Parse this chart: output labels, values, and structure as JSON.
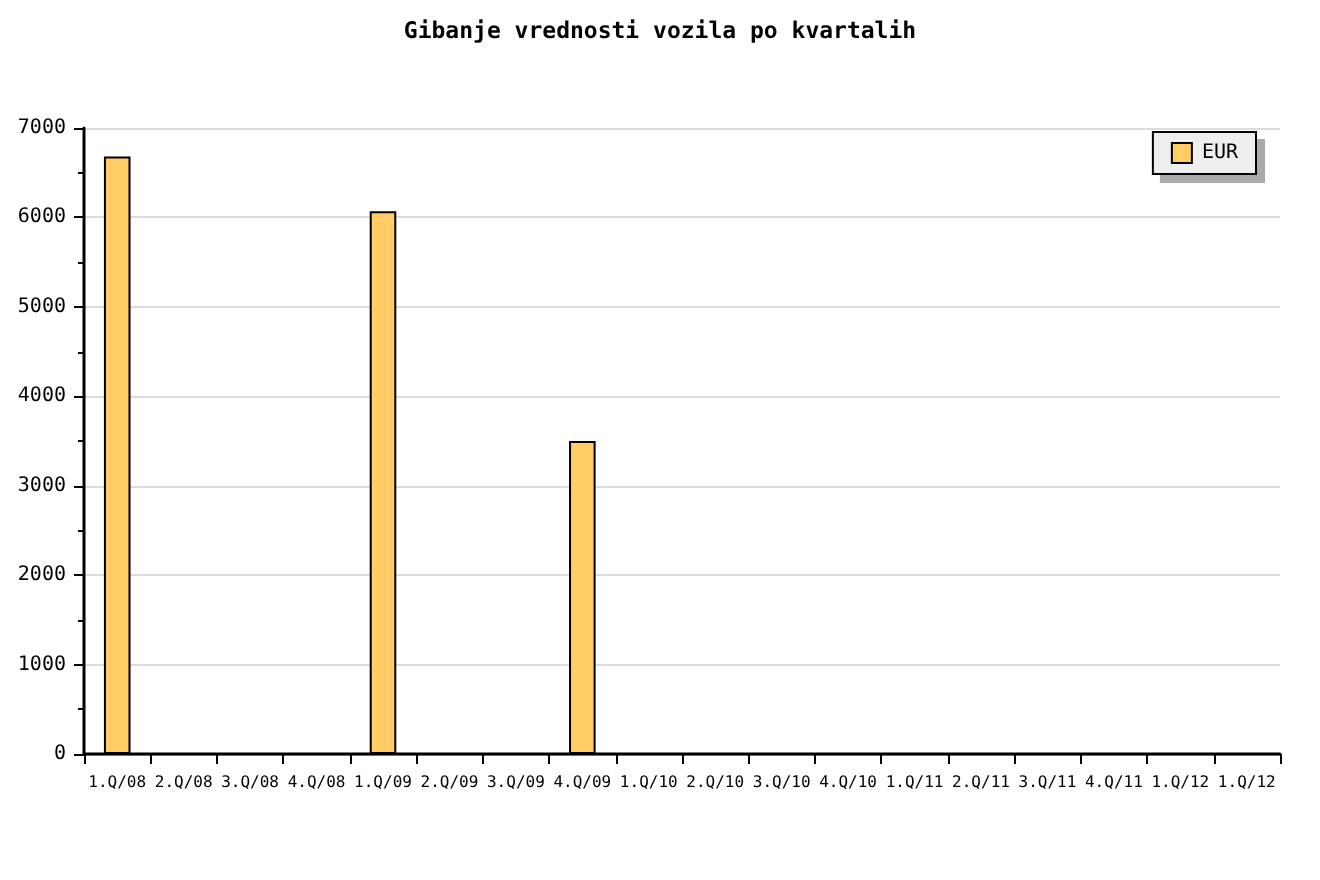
{
  "chart_data": {
    "type": "bar",
    "title": "Gibanje vrednosti vozila po kvartalih",
    "categories": [
      "1.Q/08",
      "2.Q/08",
      "3.Q/08",
      "4.Q/08",
      "1.Q/09",
      "2.Q/09",
      "3.Q/09",
      "4.Q/09",
      "1.Q/10",
      "2.Q/10",
      "3.Q/10",
      "4.Q/10",
      "1.Q/11",
      "2.Q/11",
      "3.Q/11",
      "4.Q/11",
      "1.Q/12",
      "1.Q/12"
    ],
    "series": [
      {
        "name": "EUR",
        "color": "#ffcc66",
        "values": [
          6680,
          null,
          null,
          null,
          6070,
          null,
          null,
          3500,
          null,
          null,
          null,
          null,
          null,
          null,
          null,
          null,
          null,
          null
        ]
      }
    ],
    "ylim": [
      0,
      7000
    ],
    "yticks": [
      0,
      {
        "value": 500,
        "label": null
      },
      1000,
      {
        "value": 1500,
        "label": null
      },
      2000,
      {
        "value": 2500,
        "label": null
      },
      3000,
      {
        "value": 3500,
        "label": null
      },
      4000,
      {
        "value": 4500,
        "label": null
      },
      5000,
      {
        "value": 5500,
        "label": null
      },
      6000,
      {
        "value": 6500,
        "label": null
      },
      7000
    ],
    "grid": "y",
    "legend": "top right"
  }
}
